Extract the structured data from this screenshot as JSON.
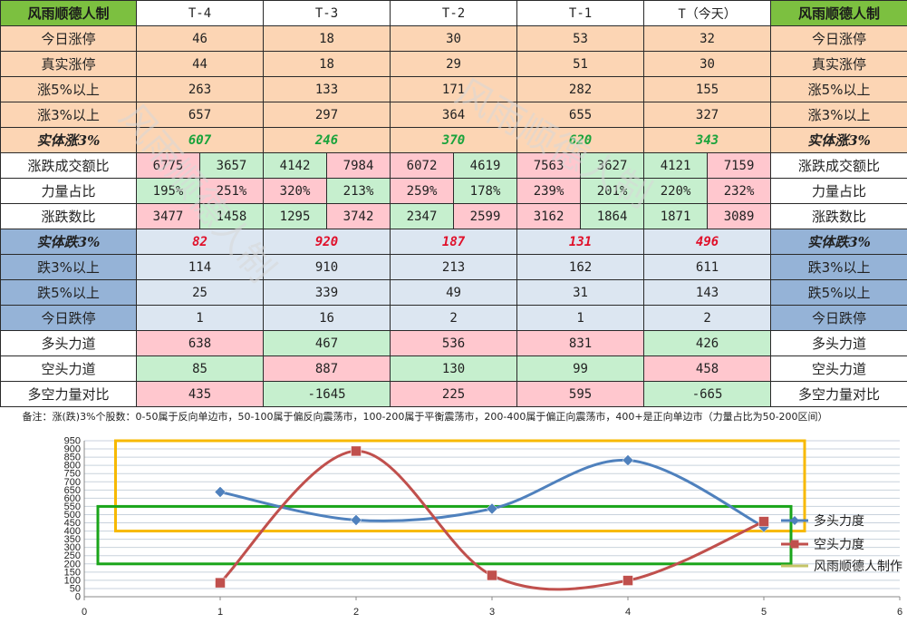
{
  "table": {
    "corner_label": "风雨顺德人制",
    "columns": [
      "T-4",
      "T-3",
      "T-2",
      "T-1",
      "T（今天）"
    ],
    "rows_top": [
      {
        "label": "今日涨停",
        "values": [
          "46",
          "18",
          "30",
          "53",
          "32"
        ]
      },
      {
        "label": "真实涨停",
        "values": [
          "44",
          "18",
          "29",
          "51",
          "30"
        ]
      },
      {
        "label": "涨5%以上",
        "values": [
          "263",
          "133",
          "171",
          "282",
          "155"
        ]
      },
      {
        "label": "涨3%以上",
        "values": [
          "657",
          "297",
          "364",
          "655",
          "327"
        ]
      }
    ],
    "row_entity_up": {
      "label": "实体涨3%",
      "values": [
        "607",
        "246",
        "370",
        "620",
        "343"
      ]
    },
    "row_amount_ratio": {
      "label": "涨跌成交额比",
      "pairs": [
        [
          "6775",
          "3657"
        ],
        [
          "4142",
          "7984"
        ],
        [
          "6072",
          "4619"
        ],
        [
          "7563",
          "3627"
        ],
        [
          "4121",
          "7159"
        ]
      ]
    },
    "row_power_ratio": {
      "label": "力量占比",
      "pairs": [
        [
          "195%",
          "251%"
        ],
        [
          "320%",
          "213%"
        ],
        [
          "259%",
          "178%"
        ],
        [
          "239%",
          "201%"
        ],
        [
          "220%",
          "232%"
        ]
      ]
    },
    "row_count_ratio": {
      "label": "涨跌数比",
      "pairs": [
        [
          "3477",
          "1458"
        ],
        [
          "1295",
          "3742"
        ],
        [
          "2347",
          "2599"
        ],
        [
          "3162",
          "1864"
        ],
        [
          "1871",
          "3089"
        ]
      ]
    },
    "row_entity_down": {
      "label": "实体跌3%",
      "values": [
        "82",
        "920",
        "187",
        "131",
        "496"
      ]
    },
    "rows_down": [
      {
        "label": "跌3%以上",
        "values": [
          "114",
          "910",
          "213",
          "162",
          "611"
        ]
      },
      {
        "label": "跌5%以上",
        "values": [
          "25",
          "339",
          "49",
          "31",
          "143"
        ]
      },
      {
        "label": "今日跌停",
        "values": [
          "1",
          "16",
          "2",
          "1",
          "2"
        ]
      }
    ],
    "row_bull": {
      "label": "多头力道",
      "values": [
        "638",
        "467",
        "536",
        "831",
        "426"
      ]
    },
    "row_bear": {
      "label": "空头力道",
      "values": [
        "85",
        "887",
        "130",
        "99",
        "458"
      ]
    },
    "row_diff": {
      "label": "多空力量对比",
      "values": [
        "435",
        "-1645",
        "225",
        "595",
        "-665"
      ]
    },
    "note": "备注：涨(跌)3%个股数：0-50属于反向单边市，50-100属于偏反向震荡市，100-200属于平衡震荡市，200-400属于偏正向震荡市，400+是正向单边市（力量占比为50-200区间）"
  },
  "watermark": "风雨顺德人制",
  "colors": {
    "bull": "#4f81bd",
    "bear": "#c0504d",
    "yellow_box": "#f7b900",
    "green_box": "#1aa51a",
    "grid": "#c8d2dc"
  },
  "chart_data": {
    "type": "line",
    "x": [
      1,
      2,
      3,
      4,
      5
    ],
    "xlim": [
      0,
      6
    ],
    "xticks": [
      0,
      1,
      2,
      3,
      4,
      5,
      6
    ],
    "ylim": [
      0,
      950
    ],
    "ystep": 50,
    "series": [
      {
        "name": "多头力度",
        "values": [
          638,
          467,
          536,
          831,
          426
        ]
      },
      {
        "name": "空头力度",
        "values": [
          85,
          887,
          130,
          99,
          458
        ]
      }
    ],
    "legend_extra": "风雨顺德人制作",
    "legend_position": "right",
    "highlight_boxes": [
      {
        "color": "yellow",
        "y_range": [
          400,
          950
        ],
        "x_range": [
          0.23,
          5.3
        ]
      },
      {
        "color": "green",
        "y_range": [
          200,
          550
        ],
        "x_range": [
          0.1,
          5.2
        ]
      }
    ]
  }
}
